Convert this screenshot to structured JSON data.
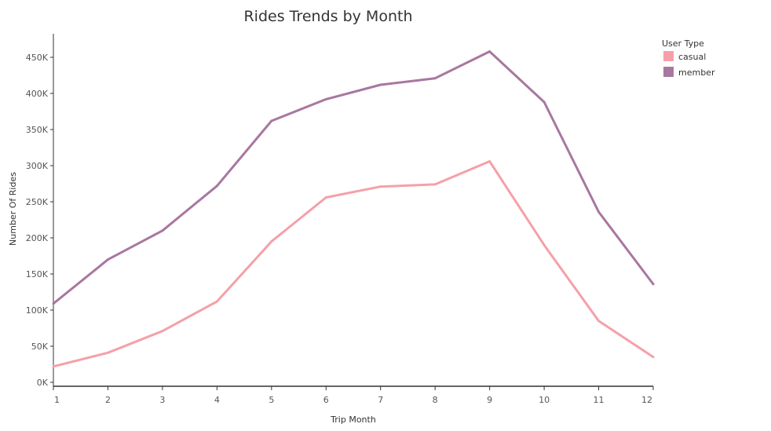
{
  "chart_data": {
    "type": "line",
    "title": "Rides Trends by Month",
    "xlabel": "Trip Month",
    "ylabel": "Number Of Rides",
    "x": [
      1,
      2,
      3,
      4,
      5,
      6,
      7,
      8,
      9,
      10,
      11,
      12
    ],
    "x_tick_labels": [
      "1",
      "2",
      "3",
      "4",
      "5",
      "6",
      "7",
      "8",
      "9",
      "10",
      "11",
      "12"
    ],
    "xlim": [
      1,
      12
    ],
    "ylim": [
      0,
      450000
    ],
    "y_ticks": [
      0,
      50000,
      100000,
      150000,
      200000,
      250000,
      300000,
      350000,
      400000,
      450000
    ],
    "y_tick_labels": [
      "0K",
      "50K",
      "100K",
      "150K",
      "200K",
      "250K",
      "300K",
      "350K",
      "400K",
      "450K"
    ],
    "grid": false,
    "legend": {
      "title": "User Type",
      "placement": "top-right"
    },
    "series": [
      {
        "name": "casual",
        "color": "#f5a0a8",
        "values": [
          22000,
          41000,
          71000,
          112000,
          195000,
          256000,
          271000,
          274000,
          306000,
          190000,
          85000,
          35000
        ]
      },
      {
        "name": "member",
        "color": "#a8779f",
        "values": [
          109000,
          170000,
          210000,
          272000,
          362000,
          392000,
          412000,
          421000,
          458000,
          388000,
          236000,
          136000
        ]
      }
    ]
  }
}
